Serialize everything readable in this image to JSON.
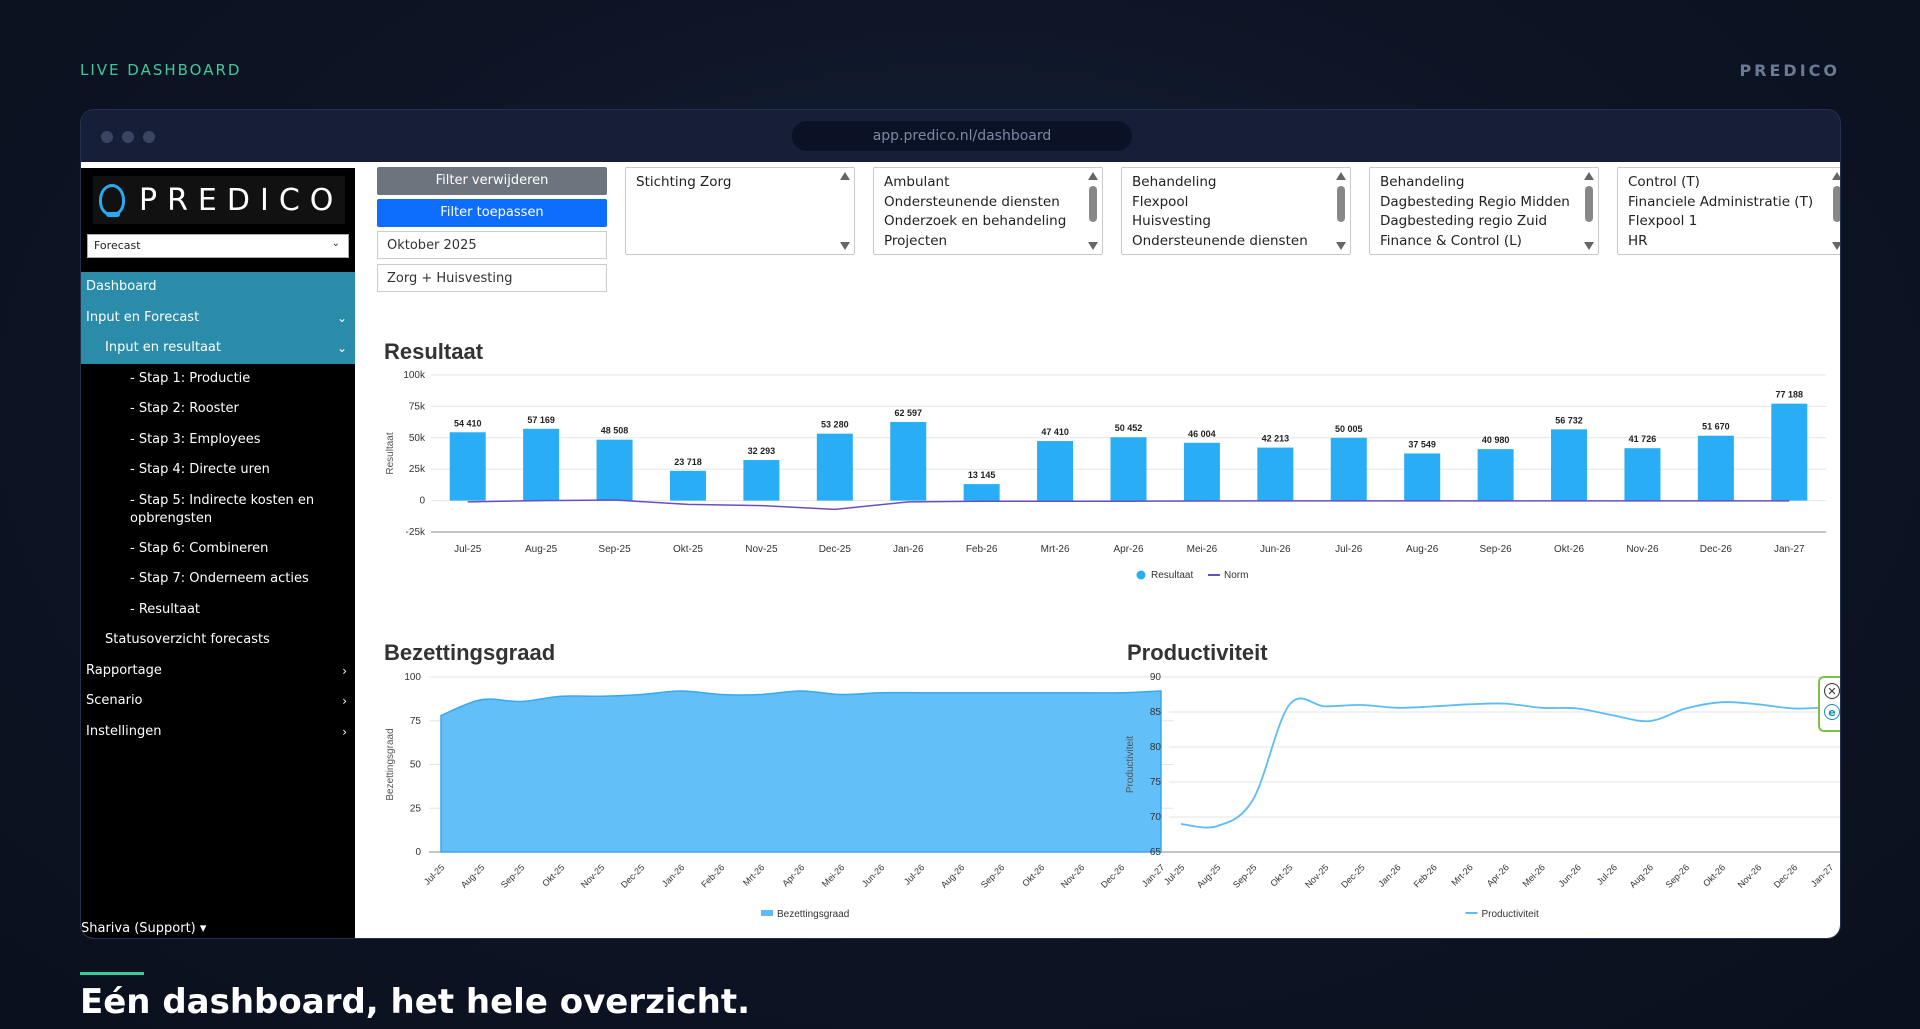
{
  "page": {
    "top_label": "LIVE DASHBOARD",
    "brand": "PREDICO",
    "headline": "Eén dashboard, het hele overzicht.",
    "url": "app.predico.nl/dashboard",
    "accent_color": "#3ec99a"
  },
  "sidebar": {
    "logo": "PREDICO",
    "select_value": "Forecast",
    "items": [
      {
        "label": "Dashboard",
        "level": 0,
        "active": true,
        "arrow": ""
      },
      {
        "label": "Input en Forecast",
        "level": 0,
        "active": true,
        "arrow": "down"
      },
      {
        "label": "Input en resultaat",
        "level": 1,
        "active": true,
        "arrow": "down"
      },
      {
        "label": "- Stap 1: Productie",
        "level": 2,
        "active": false,
        "arrow": ""
      },
      {
        "label": "- Stap 2: Rooster",
        "level": 2,
        "active": false,
        "arrow": ""
      },
      {
        "label": "- Stap 3: Employees",
        "level": 2,
        "active": false,
        "arrow": ""
      },
      {
        "label": "- Stap 4: Directe uren",
        "level": 2,
        "active": false,
        "arrow": ""
      },
      {
        "label": "- Stap 5: Indirecte kosten en opbrengsten",
        "level": 2,
        "active": false,
        "arrow": "",
        "multi": true
      },
      {
        "label": "- Stap 6: Combineren",
        "level": 2,
        "active": false,
        "arrow": ""
      },
      {
        "label": "- Stap 7: Onderneem acties",
        "level": 2,
        "active": false,
        "arrow": ""
      },
      {
        "label": "- Resultaat",
        "level": 2,
        "active": false,
        "arrow": ""
      },
      {
        "label": "Statusoverzicht forecasts",
        "level": 1,
        "active": false,
        "arrow": ""
      },
      {
        "label": "Rapportage",
        "level": 0,
        "active": false,
        "arrow": "right"
      },
      {
        "label": "Scenario",
        "level": 0,
        "active": false,
        "arrow": "right"
      },
      {
        "label": "Instellingen",
        "level": 0,
        "active": false,
        "arrow": "right"
      }
    ],
    "user": "Shariva (Support)"
  },
  "filters": {
    "remove_label": "Filter verwijderen",
    "apply_label": "Filter toepassen",
    "period": "Oktober 2025",
    "scope": "Zorg + Huisvesting",
    "lists": [
      [
        "Stichting Zorg"
      ],
      [
        "Ambulant",
        "Ondersteunende diensten",
        "Onderzoek en behandeling",
        "Projecten"
      ],
      [
        "Behandeling",
        "Flexpool",
        "Huisvesting",
        "Ondersteunende diensten"
      ],
      [
        "Behandeling",
        "Dagbesteding Regio Midden",
        "Dagbesteding regio Zuid",
        "Finance & Control (L)"
      ],
      [
        "Control (T)",
        "Financiele Administratie (T)",
        "Flexpool 1",
        "HR"
      ]
    ]
  },
  "chart_data": [
    {
      "type": "bar",
      "title": "Resultaat",
      "ylabel": "Resultaat",
      "xlabel": "",
      "ylim": [
        -25000,
        100000
      ],
      "yticks": [
        "100k",
        "75k",
        "50k",
        "25k",
        "0",
        "-25k"
      ],
      "categories": [
        "Jul-25",
        "Aug-25",
        "Sep-25",
        "Okt-25",
        "Nov-25",
        "Dec-25",
        "Jan-26",
        "Feb-26",
        "Mrt-26",
        "Apr-26",
        "Mei-26",
        "Jun-26",
        "Jul-26",
        "Aug-26",
        "Sep-26",
        "Okt-26",
        "Nov-26",
        "Dec-26",
        "Jan-27"
      ],
      "series": [
        {
          "name": "Resultaat",
          "type": "bar",
          "color": "#29aef5",
          "values": [
            54410,
            57169,
            48508,
            23718,
            32293,
            53280,
            62597,
            13145,
            47410,
            50452,
            46004,
            42213,
            50005,
            37549,
            40980,
            56732,
            41726,
            51670,
            77188
          ],
          "labels": [
            "54 410",
            "57 169",
            "48 508",
            "23 718",
            "32 293",
            "53 280",
            "62 597",
            "13 145",
            "47 410",
            "50 452",
            "46 004",
            "42 213",
            "50 005",
            "37 549",
            "40 980",
            "56 732",
            "41 726",
            "51 670",
            "77 188"
          ]
        },
        {
          "name": "Norm",
          "type": "line",
          "color": "#6a4fc4",
          "values": [
            -1000,
            0,
            500,
            -3000,
            -4000,
            -7000,
            -1000,
            -500,
            -500,
            -500,
            -300,
            -200,
            -200,
            -200,
            -200,
            -200,
            -200,
            -200,
            -200
          ]
        }
      ],
      "legend": "bottom"
    },
    {
      "type": "area",
      "title": "Bezettingsgraad",
      "ylabel": "Bezettingsgraad",
      "ylim": [
        0,
        100
      ],
      "yticks": [
        100,
        75,
        50,
        25,
        0
      ],
      "categories": [
        "Jul-25",
        "Aug-25",
        "Sep-25",
        "Okt-25",
        "Nov-25",
        "Dec-25",
        "Jan-26",
        "Feb-26",
        "Mrt-26",
        "Apr-26",
        "Mei-26",
        "Jun-26",
        "Jul-26",
        "Aug-26",
        "Sep-26",
        "Okt-26",
        "Nov-26",
        "Dec-26",
        "Jan-27"
      ],
      "series": [
        {
          "name": "Bezettingsgraad",
          "color": "#5bbcf7",
          "values": [
            78,
            87,
            86,
            89,
            89,
            90,
            92,
            90,
            90,
            92,
            90,
            91,
            91,
            91,
            91,
            91,
            91,
            91,
            92
          ]
        }
      ],
      "legend": "bottom"
    },
    {
      "type": "line",
      "title": "Productiviteit",
      "ylabel": "Productiviteit",
      "ylim": [
        65,
        90
      ],
      "yticks": [
        90,
        85,
        80,
        75,
        70,
        65
      ],
      "categories": [
        "Jul-25",
        "Aug-25",
        "Sep-25",
        "Okt-25",
        "Nov-25",
        "Dec-25",
        "Jan-26",
        "Feb-26",
        "Mrt-26",
        "Apr-26",
        "Mei-26",
        "Jun-26",
        "Jul-26",
        "Aug-26",
        "Sep-26",
        "Okt-26",
        "Nov-26",
        "Dec-26",
        "Jan-27"
      ],
      "series": [
        {
          "name": "Productiviteit",
          "color": "#5bbcf7",
          "values": [
            69,
            68.7,
            72.5,
            86,
            85.8,
            86,
            85.6,
            85.8,
            86.1,
            86.2,
            85.6,
            85.5,
            84.5,
            83.7,
            85.5,
            86.4,
            86.1,
            85.5,
            85.7
          ]
        }
      ],
      "legend": "bottom"
    }
  ]
}
